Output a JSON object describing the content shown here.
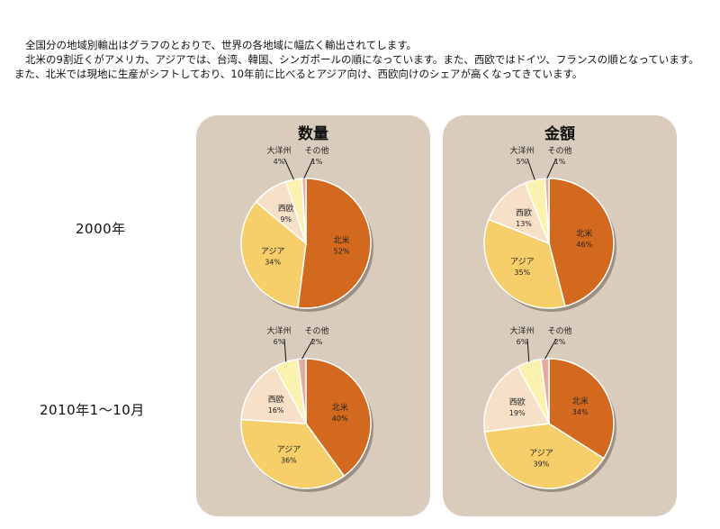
{
  "intro": {
    "line1": "全国分の地域別輸出はグラフのとおりで、世界の各地域に幅広く輸出されてします。",
    "line2": "北米の9割近くがアメリカ、アジアでは、台湾、韓国、シンガポールの順になっています。また、西欧ではドイツ、フランスの順となっています。また、北米では現地に生産がシフトしており、10年前に比べるとアジア向け、西欧向けのシェアが高くなってきています。"
  },
  "row_labels": [
    "2000年",
    "2010年1～10月"
  ],
  "panel_titles": [
    "数量",
    "金額"
  ],
  "colors": {
    "北米": "#d2691e",
    "アジア": "#f6cf6b",
    "西欧": "#f7e0c8",
    "大洋州": "#fbf2b0",
    "その他": "#e8a9a0",
    "panel": "#d9ccbd"
  },
  "chart_data": [
    {
      "type": "pie",
      "title": "数量",
      "row": "2000年",
      "slices": [
        {
          "label": "北米",
          "value": 52
        },
        {
          "label": "アジア",
          "value": 34
        },
        {
          "label": "西欧",
          "value": 9
        },
        {
          "label": "大洋州",
          "value": 4
        },
        {
          "label": "その他",
          "value": 1
        }
      ]
    },
    {
      "type": "pie",
      "title": "金額",
      "row": "2000年",
      "slices": [
        {
          "label": "北米",
          "value": 46
        },
        {
          "label": "アジア",
          "value": 35
        },
        {
          "label": "西欧",
          "value": 13
        },
        {
          "label": "大洋州",
          "value": 5
        },
        {
          "label": "その他",
          "value": 1
        }
      ]
    },
    {
      "type": "pie",
      "title": "数量",
      "row": "2010年1～10月",
      "slices": [
        {
          "label": "北米",
          "value": 40
        },
        {
          "label": "アジア",
          "value": 36
        },
        {
          "label": "西欧",
          "value": 16
        },
        {
          "label": "大洋州",
          "value": 6
        },
        {
          "label": "その他",
          "value": 2
        }
      ]
    },
    {
      "type": "pie",
      "title": "金額",
      "row": "2010年1～10月",
      "slices": [
        {
          "label": "北米",
          "value": 34
        },
        {
          "label": "アジア",
          "value": 39
        },
        {
          "label": "西欧",
          "value": 19
        },
        {
          "label": "大洋州",
          "value": 6
        },
        {
          "label": "その他",
          "value": 2
        }
      ]
    }
  ]
}
